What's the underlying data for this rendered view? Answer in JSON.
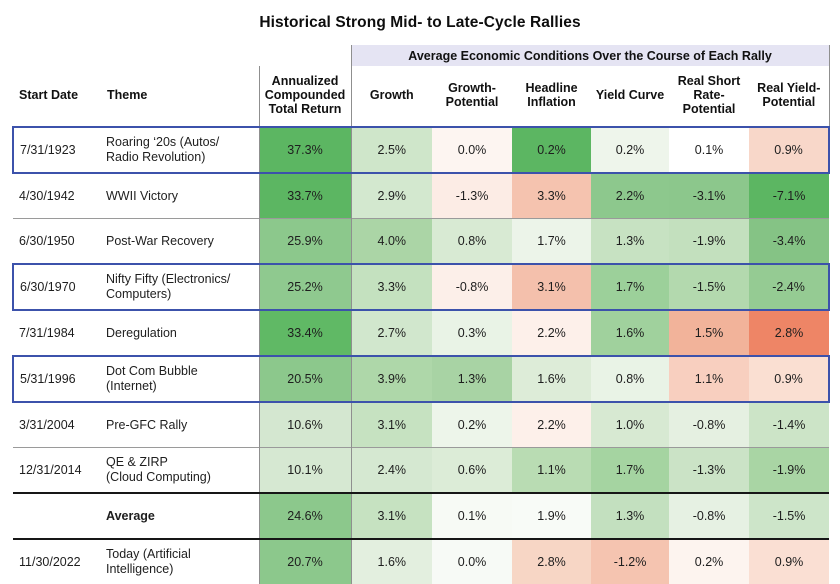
{
  "title": "Historical Strong Mid- to Late-Cycle Rallies",
  "group_header": "Average Economic Conditions Over the Course of Each Rally",
  "columns": [
    "Start Date",
    "Theme",
    "Annualized\nCompounded\nTotal Return",
    "Growth",
    "Growth-\nPotential",
    "Headline\nInflation",
    "Yield Curve",
    "Real Short\nRate-\nPotential",
    "Real Yield-\nPotential"
  ],
  "colors": {
    "highlight_border": "#3c52ab",
    "group_header_bg": "#e5e4f3",
    "grid_line": "#9a9a9a",
    "heavy_line": "#161616",
    "strong_green": "#5cb662",
    "medium_green": "#8cc88c",
    "light_green": "#cde5c8",
    "strong_salmon": "#ee8566",
    "salmon": "#f4c0ac"
  },
  "chart_data": {
    "type": "table",
    "title": "Historical Strong Mid- to Late-Cycle Rallies",
    "column_group_label": "Average Economic Conditions Over the Course of Each Rally",
    "value_columns": [
      "Annualized Compounded Total Return",
      "Growth",
      "Growth-Potential",
      "Headline Inflation",
      "Yield Curve",
      "Real Short Rate-Potential",
      "Real Yield-Potential"
    ],
    "rows": [
      {
        "start_date": "7/31/1923",
        "theme": "Roaring ‘20s (Autos/\nRadio Revolution)",
        "highlighted": true,
        "is_average": false,
        "cells": [
          {
            "v": "37.3%",
            "bg": "#5cb662"
          },
          {
            "v": "2.5%",
            "bg": "#cfe6ca"
          },
          {
            "v": "0.0%",
            "bg": "#fdf5f1"
          },
          {
            "v": "0.2%",
            "bg": "#5cb662"
          },
          {
            "v": "0.2%",
            "bg": "#eef5eb"
          },
          {
            "v": "0.1%",
            "bg": "#ffffff"
          },
          {
            "v": "0.9%",
            "bg": "#f8d7c9"
          }
        ]
      },
      {
        "start_date": "4/30/1942",
        "theme": "WWII Victory",
        "highlighted": false,
        "is_average": false,
        "cells": [
          {
            "v": "33.7%",
            "bg": "#5cb662"
          },
          {
            "v": "2.9%",
            "bg": "#d3e8cf"
          },
          {
            "v": "-1.3%",
            "bg": "#fcece5"
          },
          {
            "v": "3.3%",
            "bg": "#f5c3af"
          },
          {
            "v": "2.2%",
            "bg": "#8dc88d"
          },
          {
            "v": "-3.1%",
            "bg": "#8cc78c"
          },
          {
            "v": "-7.1%",
            "bg": "#5cb662"
          }
        ]
      },
      {
        "start_date": "6/30/1950",
        "theme": "Post-War Recovery",
        "highlighted": false,
        "is_average": false,
        "cells": [
          {
            "v": "25.9%",
            "bg": "#8cc88c"
          },
          {
            "v": "4.0%",
            "bg": "#abd5a6"
          },
          {
            "v": "0.8%",
            "bg": "#d8ead3"
          },
          {
            "v": "1.7%",
            "bg": "#ecf4e9"
          },
          {
            "v": "1.3%",
            "bg": "#c7e2c2"
          },
          {
            "v": "-1.9%",
            "bg": "#c3e0be"
          },
          {
            "v": "-3.4%",
            "bg": "#85c385"
          }
        ]
      },
      {
        "start_date": "6/30/1970",
        "theme": "Nifty Fifty (Electronics/\nComputers)",
        "highlighted": true,
        "is_average": false,
        "cells": [
          {
            "v": "25.2%",
            "bg": "#8fc98f"
          },
          {
            "v": "3.3%",
            "bg": "#c4e1bf"
          },
          {
            "v": "-0.8%",
            "bg": "#fcefe9"
          },
          {
            "v": "3.1%",
            "bg": "#f4c0ac"
          },
          {
            "v": "1.7%",
            "bg": "#9cd09a"
          },
          {
            "v": "-1.5%",
            "bg": "#b3d9ae"
          },
          {
            "v": "-2.4%",
            "bg": "#95cb93"
          }
        ]
      },
      {
        "start_date": "7/31/1984",
        "theme": "Deregulation",
        "highlighted": false,
        "is_average": false,
        "cells": [
          {
            "v": "33.4%",
            "bg": "#60b965"
          },
          {
            "v": "2.7%",
            "bg": "#d1e7cd"
          },
          {
            "v": "0.3%",
            "bg": "#e9f3e6"
          },
          {
            "v": "2.2%",
            "bg": "#fdf0ea"
          },
          {
            "v": "1.6%",
            "bg": "#a0d19d"
          },
          {
            "v": "1.5%",
            "bg": "#f2b39a"
          },
          {
            "v": "2.8%",
            "bg": "#ee8566"
          }
        ]
      },
      {
        "start_date": "5/31/1996",
        "theme": "Dot Com Bubble\n(Internet)",
        "highlighted": true,
        "is_average": false,
        "cells": [
          {
            "v": "20.5%",
            "bg": "#8cc88c"
          },
          {
            "v": "3.9%",
            "bg": "#aed7a9"
          },
          {
            "v": "1.3%",
            "bg": "#a8d3a4"
          },
          {
            "v": "1.6%",
            "bg": "#ddecd8"
          },
          {
            "v": "0.8%",
            "bg": "#e9f3e6"
          },
          {
            "v": "1.1%",
            "bg": "#f8cfbf"
          },
          {
            "v": "0.9%",
            "bg": "#fadfd2"
          }
        ]
      },
      {
        "start_date": "3/31/2004",
        "theme": "Pre-GFC Rally",
        "highlighted": false,
        "is_average": false,
        "cells": [
          {
            "v": "10.6%",
            "bg": "#d4e7d0"
          },
          {
            "v": "3.1%",
            "bg": "#c6e2c1"
          },
          {
            "v": "0.2%",
            "bg": "#edf5ea"
          },
          {
            "v": "2.2%",
            "bg": "#fdf0ea"
          },
          {
            "v": "1.0%",
            "bg": "#d7e9d2"
          },
          {
            "v": "-0.8%",
            "bg": "#e5f0e1"
          },
          {
            "v": "-1.4%",
            "bg": "#cce4c7"
          }
        ]
      },
      {
        "start_date": "12/31/2014",
        "theme": "QE & ZIRP\n(Cloud Computing)",
        "highlighted": false,
        "is_average": false,
        "cells": [
          {
            "v": "10.1%",
            "bg": "#d6e8d2"
          },
          {
            "v": "2.4%",
            "bg": "#d5e8d1"
          },
          {
            "v": "0.6%",
            "bg": "#dcecd7"
          },
          {
            "v": "1.1%",
            "bg": "#b9dcb3"
          },
          {
            "v": "1.7%",
            "bg": "#a5d4a1"
          },
          {
            "v": "-1.3%",
            "bg": "#cbe3c6"
          },
          {
            "v": "-1.9%",
            "bg": "#a9d5a4"
          }
        ]
      },
      {
        "start_date": "",
        "theme": "Average",
        "highlighted": false,
        "is_average": true,
        "cells": [
          {
            "v": "24.6%",
            "bg": "#8cc88c"
          },
          {
            "v": "3.1%",
            "bg": "#c6e2c1"
          },
          {
            "v": "0.1%",
            "bg": "#f7faf5"
          },
          {
            "v": "1.9%",
            "bg": "#f8fbf7"
          },
          {
            "v": "1.3%",
            "bg": "#c3e0bf"
          },
          {
            "v": "-0.8%",
            "bg": "#e6f1e3"
          },
          {
            "v": "-1.5%",
            "bg": "#cde5c9"
          }
        ]
      },
      {
        "start_date": "11/30/2022",
        "theme": "Today (Artificial\nIntelligence)",
        "highlighted": false,
        "is_average": false,
        "cells": [
          {
            "v": "20.7%",
            "bg": "#8cc88c"
          },
          {
            "v": "1.6%",
            "bg": "#e3efdf"
          },
          {
            "v": "0.0%",
            "bg": "#f7faf6"
          },
          {
            "v": "2.8%",
            "bg": "#f7d6c5"
          },
          {
            "v": "-1.2%",
            "bg": "#f5c4b0"
          },
          {
            "v": "0.2%",
            "bg": "#fdf4ef"
          },
          {
            "v": "0.9%",
            "bg": "#fadfd3"
          }
        ]
      }
    ]
  }
}
